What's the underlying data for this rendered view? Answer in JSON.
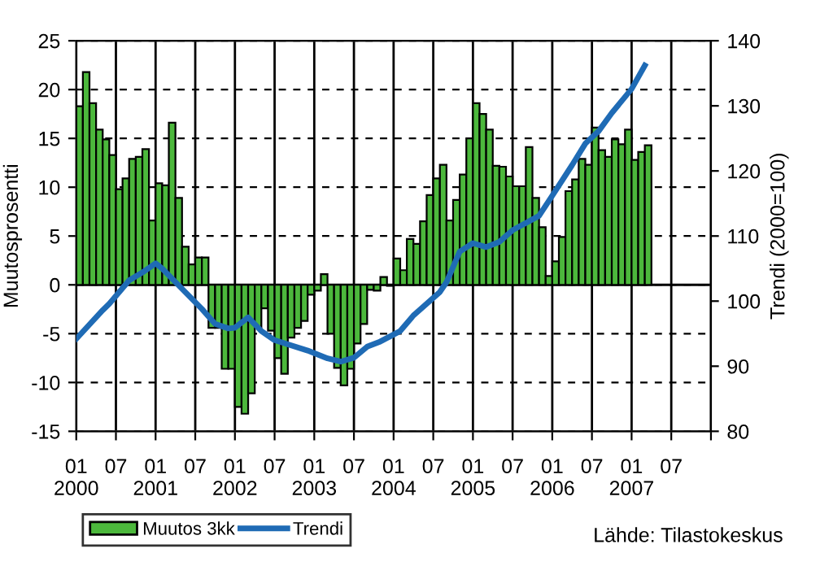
{
  "chart_data": {
    "type": "bar",
    "ylabel": "Muutosprosentti",
    "y2label": "Trendi (2000=100)",
    "x": [
      "2000-01",
      "2000-02",
      "2000-03",
      "2000-04",
      "2000-05",
      "2000-06",
      "2000-07",
      "2000-08",
      "2000-09",
      "2000-10",
      "2000-11",
      "2000-12",
      "2001-01",
      "2001-02",
      "2001-03",
      "2001-04",
      "2001-05",
      "2001-06",
      "2001-07",
      "2001-08",
      "2001-09",
      "2001-10",
      "2001-11",
      "2001-12",
      "2002-01",
      "2002-02",
      "2002-03",
      "2002-04",
      "2002-05",
      "2002-06",
      "2002-07",
      "2002-08",
      "2002-09",
      "2002-10",
      "2002-11",
      "2002-12",
      "2003-01",
      "2003-02",
      "2003-03",
      "2003-04",
      "2003-05",
      "2003-06",
      "2003-07",
      "2003-08",
      "2003-09",
      "2003-10",
      "2003-11",
      "2003-12",
      "2004-01",
      "2004-02",
      "2004-03",
      "2004-04",
      "2004-05",
      "2004-06",
      "2004-07",
      "2004-08",
      "2004-09",
      "2004-10",
      "2004-11",
      "2004-12",
      "2005-01",
      "2005-02",
      "2005-03",
      "2005-04",
      "2005-05",
      "2005-06",
      "2005-07",
      "2005-08",
      "2005-09",
      "2005-10",
      "2005-11",
      "2005-12",
      "2006-01",
      "2006-02",
      "2006-03",
      "2006-04",
      "2006-05",
      "2006-06",
      "2006-07",
      "2006-08",
      "2006-09",
      "2006-10",
      "2006-11",
      "2006-12",
      "2007-01",
      "2007-02",
      "2007-03"
    ],
    "series": [
      {
        "name": "Muutos 3kk",
        "color": "#4cb83c",
        "values": [
          18.3,
          21.8,
          18.6,
          15.9,
          14.9,
          13.3,
          9.8,
          10.9,
          12.9,
          13.1,
          13.9,
          6.6,
          10.4,
          10.2,
          16.6,
          8.9,
          3.9,
          2.1,
          2.8,
          2.8,
          -4.4,
          -4.4,
          -8.6,
          -8.6,
          -12.5,
          -13.2,
          -11.1,
          -4.4,
          -2.4,
          -4.7,
          -7.5,
          -9.1,
          -5.4,
          -4.4,
          -3.7,
          -1.0,
          -0.6,
          1.1,
          -5.0,
          -8.5,
          -10.3,
          -8.6,
          -6.0,
          -4.0,
          -0.5,
          -0.6,
          0.8,
          -0.1,
          2.7,
          1.5,
          4.7,
          4.2,
          6.5,
          9.2,
          10.9,
          12.3,
          6.6,
          8.7,
          11.3,
          15.0,
          18.6,
          17.5,
          15.9,
          12.2,
          12.1,
          11.1,
          10.1,
          10.1,
          14.1,
          8.9,
          5.9,
          0.9,
          2.4,
          4.9,
          9.6,
          10.8,
          12.9,
          12.3,
          16.1,
          13.8,
          13.1,
          14.9,
          14.4,
          15.9,
          12.8,
          13.6,
          14.3
        ]
      },
      {
        "name": "Trendi",
        "type": "line",
        "axis": "y2",
        "color": "#1f6bb5",
        "x": [
          "2000-01",
          "2000-05",
          "2000-06",
          "2000-09",
          "2000-11",
          "2001-01",
          "2001-02",
          "2001-05",
          "2001-08",
          "2001-10",
          "2001-12",
          "2002-01",
          "2002-03",
          "2002-05",
          "2002-07",
          "2002-12",
          "2003-03",
          "2003-05",
          "2003-07",
          "2003-09",
          "2003-11",
          "2004-02",
          "2004-04",
          "2004-08",
          "2004-09",
          "2004-11",
          "2005-01",
          "2005-03",
          "2005-05",
          "2005-07",
          "2005-09",
          "2005-11",
          "2006-01",
          "2006-04",
          "2006-06",
          "2006-08",
          "2006-10",
          "2007-01",
          "2007-03"
        ],
        "values": [
          94.2,
          98.6,
          99.6,
          103.2,
          104.4,
          105.8,
          105.0,
          101.9,
          98.8,
          96.5,
          95.8,
          95.9,
          97.5,
          95.4,
          94.0,
          92.4,
          91.2,
          90.7,
          91.3,
          93.0,
          93.8,
          95.4,
          97.8,
          101.4,
          102.9,
          107.6,
          108.9,
          108.3,
          109.1,
          110.9,
          112.0,
          113.1,
          116.2,
          120.9,
          124.2,
          126.1,
          128.9,
          132.6,
          136.2
        ]
      }
    ],
    "xlim": [
      "2000-01",
      "2008-01"
    ],
    "xticks": [
      {
        "value": "2000-01",
        "label": "01\n2000"
      },
      {
        "value": "2000-07",
        "label": "07"
      },
      {
        "value": "2001-01",
        "label": "01\n2001"
      },
      {
        "value": "2001-07",
        "label": "07"
      },
      {
        "value": "2002-01",
        "label": "01\n2002"
      },
      {
        "value": "2002-07",
        "label": "07"
      },
      {
        "value": "2003-01",
        "label": "01\n2003"
      },
      {
        "value": "2003-07",
        "label": "07"
      },
      {
        "value": "2004-01",
        "label": "01\n2004"
      },
      {
        "value": "2004-07",
        "label": "07"
      },
      {
        "value": "2005-01",
        "label": "01\n2005"
      },
      {
        "value": "2005-07",
        "label": "07"
      },
      {
        "value": "2006-01",
        "label": "01\n2006"
      },
      {
        "value": "2006-07",
        "label": "07"
      },
      {
        "value": "2007-01",
        "label": "01\n2007"
      },
      {
        "value": "2007-07",
        "label": "07"
      },
      {
        "value": "2008-01",
        "label": null
      }
    ],
    "ylim": [
      -15,
      25
    ],
    "yticks": [
      -15,
      -10,
      -5,
      0,
      5,
      10,
      15,
      20,
      25
    ],
    "y2lim": [
      80,
      140
    ],
    "y2ticks": [
      80,
      90,
      100,
      110,
      120,
      130,
      140
    ],
    "grid": true,
    "legend": "bottom left",
    "annotations": [
      "Lähde: Tilastokeskus"
    ]
  }
}
